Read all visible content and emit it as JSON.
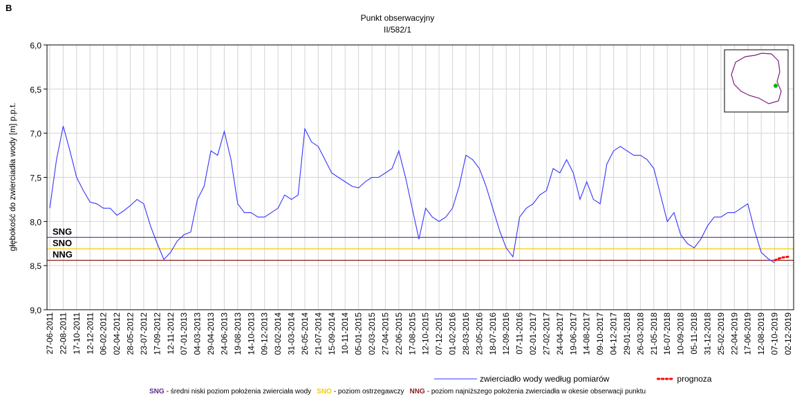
{
  "panel_label": "B",
  "chart_data": {
    "type": "line",
    "title": "Punkt obserwacyjny",
    "subtitle": "II/582/1",
    "y_label": "głębokość do zwierciadła wody [m] p.p.t.",
    "ylim": [
      6.0,
      9.0
    ],
    "y_inverted": true,
    "yticks": [
      {
        "value": 6.0,
        "label": "6,0"
      },
      {
        "value": 6.5,
        "label": "6,5"
      },
      {
        "value": 7.0,
        "label": "7,0"
      },
      {
        "value": 7.5,
        "label": "7,5"
      },
      {
        "value": 8.0,
        "label": "8,0"
      },
      {
        "value": 8.5,
        "label": "8,5"
      },
      {
        "value": 9.0,
        "label": "9,0"
      }
    ],
    "grid": true,
    "categories": [
      "27-06-2011",
      null,
      "22-08-2011",
      null,
      "17-10-2011",
      null,
      "12-12-2011",
      null,
      "06-02-2012",
      null,
      "02-04-2012",
      null,
      "28-05-2012",
      null,
      "23-07-2012",
      null,
      "17-09-2012",
      null,
      "12-11-2012",
      null,
      "07-01-2013",
      null,
      "04-03-2013",
      null,
      "29-04-2013",
      null,
      "24-06-2013",
      null,
      "19-08-2013",
      null,
      "14-10-2013",
      null,
      "09-12-2013",
      null,
      "03-02-2014",
      null,
      "31-03-2014",
      null,
      "26-05-2014",
      null,
      "21-07-2014",
      null,
      "15-09-2014",
      null,
      "10-11-2014",
      null,
      "05-01-2015",
      null,
      "02-03-2015",
      null,
      "27-04-2015",
      null,
      "22-06-2015",
      null,
      "17-08-2015",
      null,
      "12-10-2015",
      null,
      "07-12-2015",
      null,
      "01-02-2016",
      null,
      "28-03-2016",
      null,
      "23-05-2016",
      null,
      "18-07-2016",
      null,
      "12-09-2016",
      null,
      "07-11-2016",
      null,
      "02-01-2017",
      null,
      "27-02-2017",
      null,
      "24-04-2017",
      null,
      "19-06-2017",
      null,
      "14-08-2017",
      null,
      "09-10-2017",
      null,
      "04-12-2017",
      null,
      "29-01-2018",
      null,
      "26-03-2018",
      null,
      "21-05-2018",
      null,
      "16-07-2018",
      null,
      "10-09-2018",
      null,
      "05-11-2018",
      null,
      "31-12-2018",
      null,
      "25-02-2019",
      null,
      "22-04-2019",
      null,
      "17-06-2019",
      null,
      "12-08-2019",
      null,
      "07-10-2019",
      null,
      "02-12-2019"
    ],
    "series": [
      {
        "name": "zwierciadło wody według pomiarów",
        "color": "#3333ff",
        "style": "solid",
        "values": [
          7.85,
          7.3,
          6.92,
          7.2,
          7.5,
          7.65,
          7.78,
          7.8,
          7.85,
          7.85,
          7.93,
          7.88,
          7.82,
          7.75,
          7.8,
          8.05,
          8.25,
          8.43,
          8.35,
          8.22,
          8.15,
          8.12,
          7.75,
          7.6,
          7.2,
          7.25,
          6.98,
          7.3,
          7.8,
          7.9,
          7.9,
          7.95,
          7.95,
          7.9,
          7.85,
          7.7,
          7.75,
          7.7,
          6.95,
          7.1,
          7.15,
          7.3,
          7.45,
          7.5,
          7.55,
          7.6,
          7.62,
          7.55,
          7.5,
          7.5,
          7.45,
          7.4,
          7.2,
          7.5,
          7.85,
          8.2,
          7.85,
          7.95,
          8.0,
          7.95,
          7.85,
          7.6,
          7.25,
          7.3,
          7.4,
          7.6,
          7.85,
          8.1,
          8.3,
          8.4,
          7.95,
          7.85,
          7.8,
          7.7,
          7.65,
          7.4,
          7.45,
          7.3,
          7.45,
          7.75,
          7.55,
          7.75,
          7.8,
          7.35,
          7.2,
          7.15,
          7.2,
          7.25,
          7.25,
          7.3,
          7.4,
          7.7,
          8.0,
          7.9,
          8.15,
          8.25,
          8.3,
          8.2,
          8.05,
          7.95,
          7.95,
          7.9,
          7.9,
          7.85,
          7.8,
          8.1,
          8.35,
          8.42,
          8.47,
          null,
          null
        ]
      },
      {
        "name": "prognoza",
        "color": "#ff0000",
        "style": "dotted",
        "values": [
          null,
          null,
          null,
          null,
          null,
          null,
          null,
          null,
          null,
          null,
          null,
          null,
          null,
          null,
          null,
          null,
          null,
          null,
          null,
          null,
          null,
          null,
          null,
          null,
          null,
          null,
          null,
          null,
          null,
          null,
          null,
          null,
          null,
          null,
          null,
          null,
          null,
          null,
          null,
          null,
          null,
          null,
          null,
          null,
          null,
          null,
          null,
          null,
          null,
          null,
          null,
          null,
          null,
          null,
          null,
          null,
          null,
          null,
          null,
          null,
          null,
          null,
          null,
          null,
          null,
          null,
          null,
          null,
          null,
          null,
          null,
          null,
          null,
          null,
          null,
          null,
          null,
          null,
          null,
          null,
          null,
          null,
          null,
          null,
          null,
          null,
          null,
          null,
          null,
          null,
          null,
          null,
          null,
          null,
          null,
          null,
          null,
          null,
          null,
          null,
          null,
          null,
          null,
          null,
          null,
          null,
          null,
          null,
          8.44,
          8.41,
          8.4
        ]
      }
    ],
    "reference_lines": [
      {
        "name": "SNG",
        "value": 8.18,
        "color": "#5b2c8f"
      },
      {
        "name": "SNO",
        "value": 8.31,
        "color": "#f2cc0c"
      },
      {
        "name": "NNG",
        "value": 8.44,
        "color": "#8b1a1a"
      }
    ],
    "footnote": [
      "- średni niski poziom położenia zwierciała wody",
      "- poziom ostrzegawczy",
      "- poziom najniższego położenia zwierciadła w okesie obserwacji punktu"
    ]
  }
}
